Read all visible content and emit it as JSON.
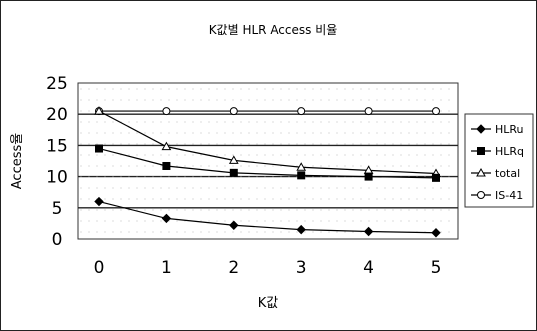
{
  "chart_data": {
    "type": "line",
    "title": "K값별 HLR Access 비율",
    "xlabel": "K값",
    "ylabel": "Access율",
    "x": [
      0,
      1,
      2,
      3,
      4,
      5
    ],
    "ylim": [
      0,
      25
    ],
    "yticks": [
      0,
      5,
      10,
      15,
      20,
      25
    ],
    "grid": true,
    "legend_position": "right",
    "series": [
      {
        "name": "HLRu",
        "marker": "diamond-filled",
        "values": [
          6,
          3.3,
          2.2,
          1.5,
          1.2,
          1.0
        ]
      },
      {
        "name": "HLRq",
        "marker": "square-filled",
        "values": [
          14.5,
          11.7,
          10.6,
          10.2,
          10.0,
          9.8
        ]
      },
      {
        "name": "total",
        "marker": "triangle-open",
        "values": [
          20.5,
          14.8,
          12.6,
          11.5,
          11.0,
          10.5
        ]
      },
      {
        "name": "IS-41",
        "marker": "circle-open",
        "values": [
          20.5,
          20.5,
          20.5,
          20.5,
          20.5,
          20.5
        ]
      }
    ]
  }
}
